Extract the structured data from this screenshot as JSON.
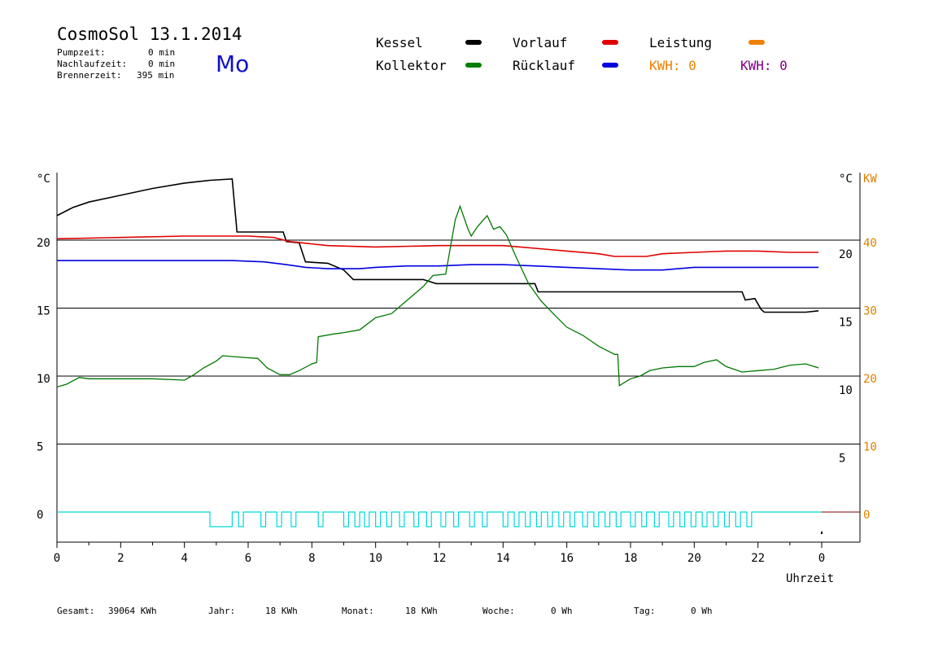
{
  "header": {
    "title": "CosmoSol 13.1.2014",
    "stats": [
      {
        "label": "Pumpzeit:",
        "value": "0 min"
      },
      {
        "label": "Nachlaufzeit:",
        "value": "0 min"
      },
      {
        "label": "Brennerzeit:",
        "value": "395 min"
      }
    ],
    "weekday": "Mo"
  },
  "legend": {
    "items": [
      {
        "label": "Kessel",
        "color": "#000000"
      },
      {
        "label": "Kollektor",
        "color": "#008000"
      },
      {
        "label": "Vorlauf",
        "color": "#e00000"
      },
      {
        "label": "Rücklauf",
        "color": "#0000e0"
      },
      {
        "label": "Leistung",
        "color": "#f08000"
      }
    ],
    "kwh": [
      {
        "text": "KWH: 0",
        "color": "#f08000"
      },
      {
        "text": "KWH: 0",
        "color": "#800080"
      }
    ]
  },
  "footer": [
    {
      "label": "Gesamt:",
      "value": "39064 KWh"
    },
    {
      "label": "Jahr:",
      "value": "18 KWh"
    },
    {
      "label": "Monat:",
      "value": "18 KWh"
    },
    {
      "label": "Woche:",
      "value": "0 Wh"
    },
    {
      "label": "Tag:",
      "value": "0 Wh"
    }
  ],
  "chart_data": {
    "type": "line",
    "xlabel": "Uhrzeit",
    "ylabel_left": "°C",
    "ylabel_right": "°C",
    "ylabel_power": "KW",
    "xlim": [
      0,
      24
    ],
    "ylim": [
      -2,
      25
    ],
    "x_ticks": [
      "0",
      "2",
      "4",
      "6",
      "8",
      "10",
      "12",
      "14",
      "16",
      "18",
      "20",
      "22",
      "0"
    ],
    "y_ticks_left": [
      0,
      5,
      10,
      15,
      20
    ],
    "y_ticks_right": [
      5,
      10,
      15,
      20
    ],
    "y_ticks_power": [
      0,
      10,
      20,
      30,
      40
    ],
    "grid": true,
    "series": [
      {
        "name": "Kessel",
        "color": "#000000",
        "points": [
          [
            0,
            21.8
          ],
          [
            0.5,
            22.4
          ],
          [
            1,
            22.8
          ],
          [
            2,
            23.3
          ],
          [
            3,
            23.8
          ],
          [
            4,
            24.2
          ],
          [
            4.8,
            24.4
          ],
          [
            5.5,
            24.5
          ],
          [
            5.65,
            20.6
          ],
          [
            7.1,
            20.6
          ],
          [
            7.2,
            19.9
          ],
          [
            7.6,
            19.8
          ],
          [
            7.8,
            18.4
          ],
          [
            8.5,
            18.3
          ],
          [
            9.0,
            17.8
          ],
          [
            9.3,
            17.1
          ],
          [
            11.5,
            17.1
          ],
          [
            11.9,
            16.8
          ],
          [
            15,
            16.8
          ],
          [
            15.1,
            16.2
          ],
          [
            21.5,
            16.2
          ],
          [
            21.6,
            15.6
          ],
          [
            21.9,
            15.7
          ],
          [
            22.1,
            14.9
          ],
          [
            22.2,
            14.7
          ],
          [
            22.5,
            14.7
          ],
          [
            23.5,
            14.7
          ],
          [
            23.9,
            14.8
          ]
        ]
      },
      {
        "name": "Vorlauf",
        "color": "#e00000",
        "points": [
          [
            0,
            20.1
          ],
          [
            2,
            20.2
          ],
          [
            4,
            20.3
          ],
          [
            6,
            20.3
          ],
          [
            6.8,
            20.2
          ],
          [
            7.3,
            19.9
          ],
          [
            8.5,
            19.6
          ],
          [
            10,
            19.5
          ],
          [
            12,
            19.6
          ],
          [
            13,
            19.6
          ],
          [
            14,
            19.6
          ],
          [
            15,
            19.4
          ],
          [
            16,
            19.2
          ],
          [
            17,
            19.0
          ],
          [
            17.5,
            18.8
          ],
          [
            18.5,
            18.8
          ],
          [
            19,
            19.0
          ],
          [
            20,
            19.1
          ],
          [
            21,
            19.2
          ],
          [
            22,
            19.2
          ],
          [
            23,
            19.1
          ],
          [
            23.9,
            19.1
          ]
        ]
      },
      {
        "name": "Rücklauf",
        "color": "#0000e0",
        "points": [
          [
            0,
            18.5
          ],
          [
            2,
            18.5
          ],
          [
            4,
            18.5
          ],
          [
            5.5,
            18.5
          ],
          [
            6.5,
            18.4
          ],
          [
            7.2,
            18.2
          ],
          [
            7.8,
            18.0
          ],
          [
            8.5,
            17.9
          ],
          [
            9.5,
            17.9
          ],
          [
            10,
            18.0
          ],
          [
            11,
            18.1
          ],
          [
            12,
            18.1
          ],
          [
            13,
            18.2
          ],
          [
            14,
            18.2
          ],
          [
            15,
            18.1
          ],
          [
            16,
            18.0
          ],
          [
            17,
            17.9
          ],
          [
            18,
            17.8
          ],
          [
            19,
            17.8
          ],
          [
            20,
            18.0
          ],
          [
            21,
            18.0
          ],
          [
            22,
            18.0
          ],
          [
            23,
            18.0
          ],
          [
            23.9,
            18.0
          ]
        ]
      },
      {
        "name": "Kollektor",
        "color": "#007800",
        "points": [
          [
            0,
            9.2
          ],
          [
            0.3,
            9.4
          ],
          [
            0.7,
            9.9
          ],
          [
            1,
            9.8
          ],
          [
            2,
            9.8
          ],
          [
            3,
            9.8
          ],
          [
            4,
            9.7
          ],
          [
            4.3,
            10.1
          ],
          [
            4.6,
            10.6
          ],
          [
            5,
            11.1
          ],
          [
            5.2,
            11.5
          ],
          [
            5.7,
            11.4
          ],
          [
            6.3,
            11.3
          ],
          [
            6.6,
            10.6
          ],
          [
            7,
            10.1
          ],
          [
            7.3,
            10.1
          ],
          [
            7.6,
            10.4
          ],
          [
            8.0,
            10.9
          ],
          [
            8.15,
            11.0
          ],
          [
            8.2,
            12.9
          ],
          [
            8.7,
            13.1
          ],
          [
            9,
            13.2
          ],
          [
            9.5,
            13.4
          ],
          [
            10,
            14.3
          ],
          [
            10.5,
            14.6
          ],
          [
            11,
            15.6
          ],
          [
            11.5,
            16.6
          ],
          [
            11.8,
            17.4
          ],
          [
            12.2,
            17.5
          ],
          [
            12.5,
            21.5
          ],
          [
            12.65,
            22.5
          ],
          [
            12.9,
            20.8
          ],
          [
            13.0,
            20.3
          ],
          [
            13.2,
            21.0
          ],
          [
            13.5,
            21.8
          ],
          [
            13.7,
            20.8
          ],
          [
            13.9,
            21.0
          ],
          [
            14.1,
            20.4
          ],
          [
            14.4,
            18.8
          ],
          [
            14.8,
            16.8
          ],
          [
            15.2,
            15.5
          ],
          [
            15.7,
            14.3
          ],
          [
            16.0,
            13.6
          ],
          [
            16.5,
            13.0
          ],
          [
            17.0,
            12.2
          ],
          [
            17.5,
            11.6
          ],
          [
            17.6,
            11.6
          ],
          [
            17.65,
            9.3
          ],
          [
            18.0,
            9.8
          ],
          [
            18.3,
            10.0
          ],
          [
            18.6,
            10.4
          ],
          [
            19.0,
            10.6
          ],
          [
            19.5,
            10.7
          ],
          [
            20.0,
            10.7
          ],
          [
            20.3,
            11.0
          ],
          [
            20.7,
            11.2
          ],
          [
            21.0,
            10.7
          ],
          [
            21.5,
            10.3
          ],
          [
            22.0,
            10.4
          ],
          [
            22.5,
            10.5
          ],
          [
            23.0,
            10.8
          ],
          [
            23.5,
            10.9
          ],
          [
            23.9,
            10.6
          ]
        ]
      }
    ],
    "pump_pulses": [
      [
        4.8,
        5.5
      ],
      [
        5.7,
        5.85
      ],
      [
        6.4,
        6.55
      ],
      [
        6.9,
        7.05
      ],
      [
        7.35,
        7.5
      ],
      [
        8.2,
        8.35
      ],
      [
        9.0,
        9.15
      ],
      [
        9.35,
        9.5
      ],
      [
        9.65,
        9.8
      ],
      [
        10.0,
        10.15
      ],
      [
        10.35,
        10.5
      ],
      [
        10.75,
        10.9
      ],
      [
        11.2,
        11.35
      ],
      [
        11.6,
        11.75
      ],
      [
        12.05,
        12.2
      ],
      [
        12.45,
        12.6
      ],
      [
        12.95,
        13.1
      ],
      [
        13.35,
        13.5
      ],
      [
        14.0,
        14.15
      ],
      [
        14.35,
        14.5
      ],
      [
        14.7,
        14.85
      ],
      [
        15.05,
        15.2
      ],
      [
        15.4,
        15.55
      ],
      [
        15.75,
        15.9
      ],
      [
        16.1,
        16.25
      ],
      [
        16.5,
        16.65
      ],
      [
        16.85,
        17.0
      ],
      [
        17.2,
        17.35
      ],
      [
        17.55,
        17.7
      ],
      [
        18.0,
        18.15
      ],
      [
        18.35,
        18.5
      ],
      [
        18.75,
        18.9
      ],
      [
        19.2,
        19.35
      ],
      [
        19.55,
        19.7
      ],
      [
        19.9,
        20.05
      ],
      [
        20.25,
        20.4
      ],
      [
        20.6,
        20.75
      ],
      [
        20.95,
        21.1
      ],
      [
        21.3,
        21.45
      ],
      [
        21.65,
        21.8
      ]
    ]
  }
}
